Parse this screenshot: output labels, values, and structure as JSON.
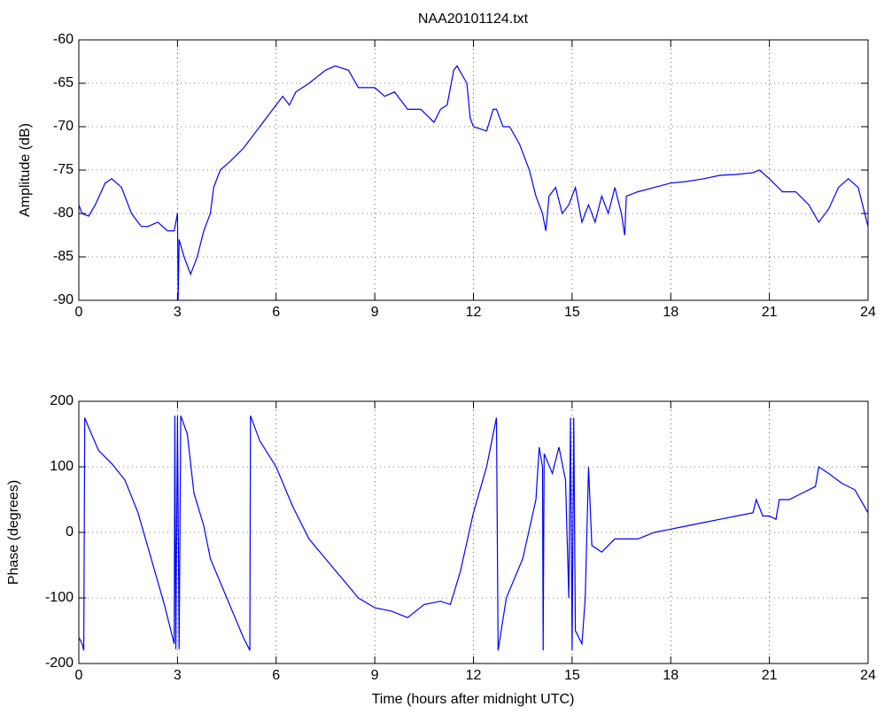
{
  "chart_data": [
    {
      "type": "line",
      "title": "NAA20101124.txt",
      "y_label": "Amplitude (dB)",
      "x": [
        0,
        0.1,
        0.3,
        0.5,
        0.8,
        1,
        1.3,
        1.6,
        1.9,
        2.1,
        2.4,
        2.7,
        2.9,
        3.0,
        3.02,
        3.05,
        3.2,
        3.4,
        3.6,
        3.8,
        4.0,
        4.1,
        4.3,
        4.6,
        5.0,
        5.3,
        5.6,
        5.9,
        6.2,
        6.4,
        6.6,
        7.0,
        7.5,
        7.8,
        8.2,
        8.5,
        9.0,
        9.3,
        9.6,
        10.0,
        10.4,
        10.8,
        11.0,
        11.2,
        11.4,
        11.5,
        11.8,
        11.9,
        12.0,
        12.4,
        12.6,
        12.7,
        12.9,
        13.1,
        13.4,
        13.7,
        13.9,
        14.1,
        14.2,
        14.3,
        14.5,
        14.7,
        14.9,
        15.1,
        15.3,
        15.5,
        15.7,
        15.9,
        16.1,
        16.3,
        16.5,
        16.6,
        16.65,
        17.0,
        17.5,
        18.0,
        18.5,
        19.0,
        19.5,
        20.0,
        20.5,
        20.7,
        21.0,
        21.4,
        21.8,
        22.2,
        22.5,
        22.8,
        23.1,
        23.4,
        23.7,
        24
      ],
      "series": [
        {
          "color": "#0000ff",
          "values": [
            -79,
            -80,
            -80.3,
            -79,
            -76.5,
            -76,
            -77,
            -80,
            -81.5,
            -81.5,
            -81,
            -82,
            -82,
            -80,
            -90,
            -83,
            -85,
            -87,
            -85,
            -82,
            -80,
            -77,
            -75,
            -74,
            -72.5,
            -71,
            -69.5,
            -68,
            -66.5,
            -67.5,
            -66,
            -65,
            -63.5,
            -63,
            -63.5,
            -65.5,
            -65.5,
            -66.5,
            -66,
            -68,
            -68,
            -69.5,
            -68,
            -67.5,
            -63.5,
            -63,
            -65,
            -69,
            -70,
            -70.5,
            -68,
            -68,
            -70,
            -70,
            -72,
            -75,
            -78,
            -80,
            -82,
            -78,
            -77,
            -80,
            -79,
            -77,
            -81,
            -79,
            -81,
            -78,
            -80,
            -77,
            -80,
            -82.5,
            -78,
            -77.5,
            -77,
            -76.5,
            -76.3,
            -76,
            -75.6,
            -75.5,
            -75.3,
            -75,
            -76,
            -77.5,
            -77.5,
            -79,
            -81,
            -79.5,
            -77,
            -76,
            -77,
            -81.5
          ]
        }
      ],
      "xlim": [
        0,
        24
      ],
      "xticks": [
        0,
        3,
        6,
        9,
        12,
        15,
        18,
        21,
        24
      ],
      "ylim": [
        -90,
        -60
      ],
      "yticks": [
        -90,
        -85,
        -80,
        -75,
        -70,
        -65,
        -60
      ],
      "grid": true
    },
    {
      "type": "line",
      "x_label": "Time (hours after midnight UTC)",
      "y_label": "Phase (degrees)",
      "x": [
        0,
        0.1,
        0.15,
        0.18,
        0.3,
        0.6,
        1.0,
        1.4,
        1.8,
        2.2,
        2.6,
        2.9,
        2.92,
        2.95,
        3.0,
        3.05,
        3.1,
        3.3,
        3.5,
        3.8,
        4.0,
        4.5,
        5.0,
        5.2,
        5.22,
        5.5,
        6.0,
        6.5,
        7.0,
        7.5,
        8.0,
        8.5,
        9.0,
        9.5,
        10.0,
        10.5,
        11.0,
        11.3,
        11.6,
        12.0,
        12.4,
        12.7,
        12.75,
        13.0,
        13.5,
        13.9,
        14.0,
        14.1,
        14.12,
        14.15,
        14.4,
        14.6,
        14.8,
        14.9,
        14.95,
        15.0,
        15.05,
        15.1,
        15.3,
        15.4,
        15.5,
        15.6,
        15.9,
        16.3,
        17,
        17.5,
        18,
        18.5,
        19,
        19.5,
        20,
        20.5,
        20.6,
        20.8,
        21,
        21.2,
        21.3,
        21.6,
        22,
        22.4,
        22.5,
        22.8,
        23.2,
        23.6,
        24
      ],
      "series": [
        {
          "color": "#0000ff",
          "values": [
            -160,
            -170,
            -180,
            175,
            160,
            125,
            105,
            80,
            30,
            -40,
            -110,
            -170,
            178,
            -178,
            178,
            -178,
            178,
            150,
            60,
            10,
            -40,
            -100,
            -160,
            -180,
            178,
            140,
            100,
            40,
            -10,
            -40,
            -70,
            -100,
            -115,
            -120,
            -130,
            -110,
            -105,
            -110,
            -60,
            30,
            100,
            175,
            -180,
            -100,
            -40,
            50,
            130,
            100,
            -180,
            120,
            90,
            130,
            80,
            -100,
            175,
            -180,
            175,
            -150,
            -170,
            -100,
            100,
            -20,
            -30,
            -10,
            -10,
            0,
            5,
            10,
            15,
            20,
            25,
            30,
            50,
            25,
            25,
            20,
            50,
            50,
            60,
            70,
            100,
            90,
            75,
            65,
            30
          ]
        }
      ],
      "xlim": [
        0,
        24
      ],
      "xticks": [
        0,
        3,
        6,
        9,
        12,
        15,
        18,
        21,
        24
      ],
      "ylim": [
        -200,
        200
      ],
      "yticks": [
        -200,
        -100,
        0,
        100,
        200
      ],
      "grid": true
    }
  ]
}
